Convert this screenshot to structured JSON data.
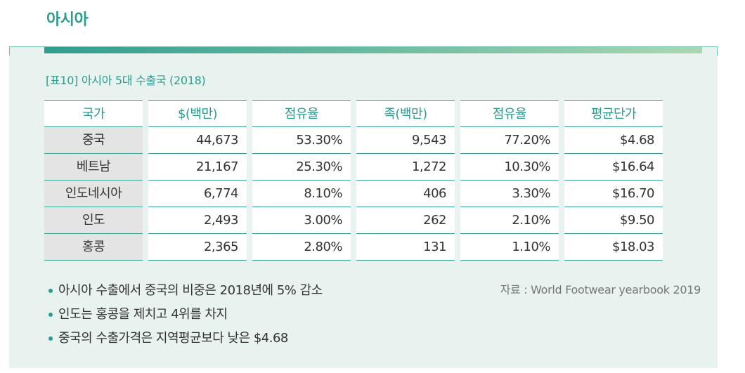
{
  "section_title": "아시아",
  "table": {
    "caption": "[표10] 아시아 5대 수출국 (2018)",
    "headers": [
      "국가",
      "$(백만)",
      "점유율",
      "족(백만)",
      "점유율",
      "평균단가"
    ],
    "rows": [
      [
        "중국",
        "44,673",
        "53.30%",
        "9,543",
        "77.20%",
        "$4.68"
      ],
      [
        "베트남",
        "21,167",
        "25.30%",
        "1,272",
        "10.30%",
        "$16.64"
      ],
      [
        "인도네시아",
        "6,774",
        "8.10%",
        "406",
        "3.30%",
        "$16.70"
      ],
      [
        "인도",
        "2,493",
        "3.00%",
        "262",
        "2.10%",
        "$9.50"
      ],
      [
        "홍콩",
        "2,365",
        "2.80%",
        "131",
        "1.10%",
        "$18.03"
      ]
    ]
  },
  "notes": [
    "아시아 수출에서 중국의 비중은 2018년에 5% 감소",
    "인도는 홍콩을 제치고 4위를 차지",
    "중국의 수출가격은 지역평균보다 낮은 $4.68"
  ],
  "source": "자료 : World Footwear yearbook 2019",
  "colors": {
    "accent": "#2a9d8f",
    "panel_bg": "#e8f2ef",
    "country_bg": "#e4e4e4"
  }
}
